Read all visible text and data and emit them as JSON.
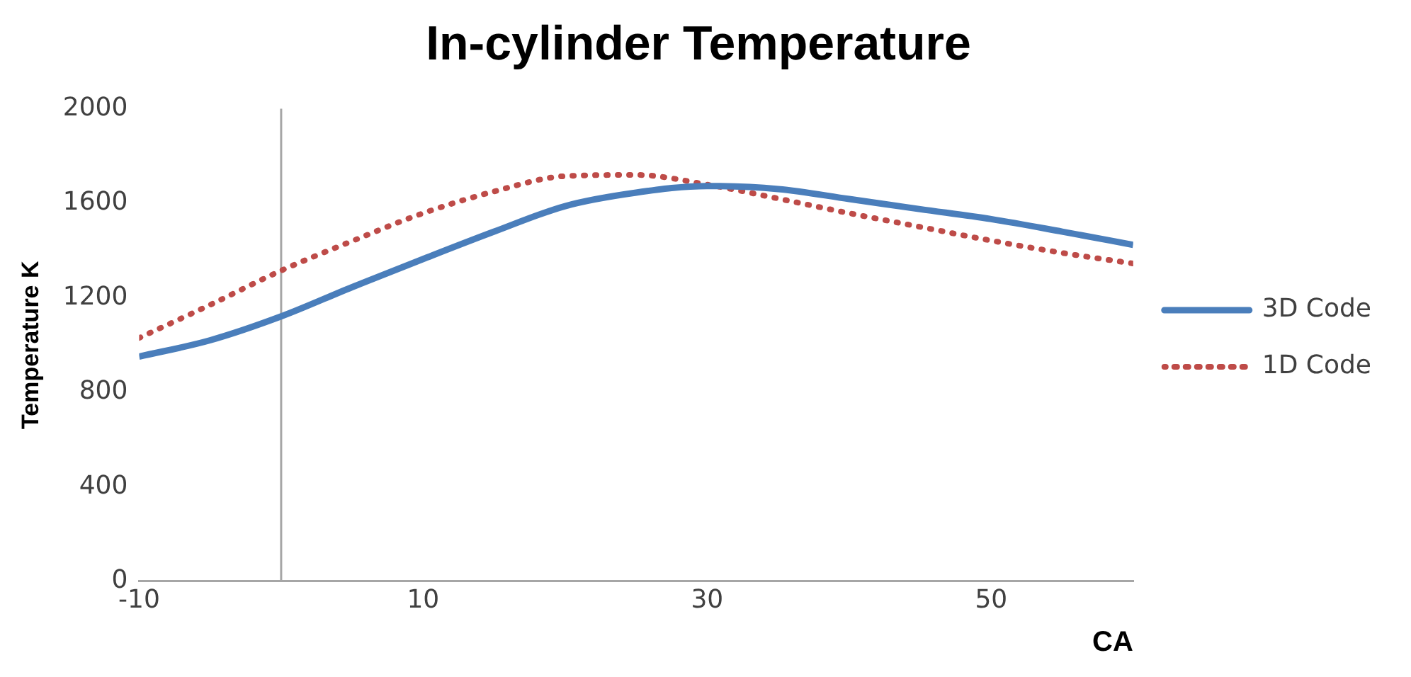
{
  "chart_data": {
    "type": "line",
    "title": "In-cylinder Temperature",
    "xlabel": "CA",
    "ylabel": "Temperature K",
    "xlim": [
      -10,
      60
    ],
    "xticks": [
      -10,
      10,
      30,
      50
    ],
    "ylim": [
      0,
      2000
    ],
    "yticks": [
      0,
      400,
      800,
      1200,
      1600,
      2000
    ],
    "grid": false,
    "legend": "right",
    "marker": "none",
    "ref_lines": [
      {
        "axis": "x",
        "value": 0,
        "color": "#a6a6a6",
        "line_style": "solid"
      }
    ],
    "series": [
      {
        "name": "3D Code",
        "color": "#4a7ebb",
        "line_style": "solid",
        "x": [
          -10,
          -5,
          0,
          5,
          10,
          15,
          20,
          25,
          30,
          35,
          40,
          45,
          50,
          55,
          60
        ],
        "values": [
          951,
          1020,
          1121,
          1245,
          1364,
          1480,
          1588,
          1645,
          1673,
          1660,
          1618,
          1575,
          1533,
          1480,
          1424
        ]
      },
      {
        "name": "1D Code",
        "color": "#be4b48",
        "line_style": "dotted",
        "x": [
          -10,
          -5,
          0,
          5,
          10,
          15,
          20,
          25,
          30,
          35,
          40,
          45,
          50,
          55,
          60
        ],
        "values": [
          1030,
          1170,
          1315,
          1440,
          1558,
          1650,
          1715,
          1720,
          1679,
          1620,
          1558,
          1500,
          1442,
          1390,
          1345
        ]
      }
    ]
  }
}
